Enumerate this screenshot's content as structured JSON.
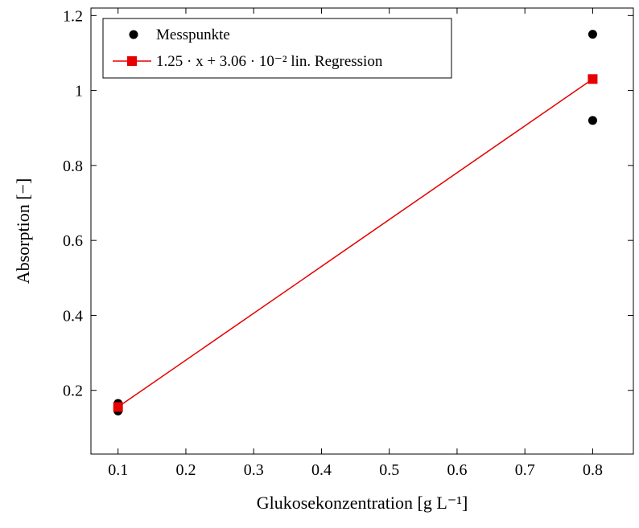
{
  "chart_data": {
    "type": "scatter",
    "title": "",
    "xlabel": "Glukosekonzentration [g L⁻¹]",
    "ylabel": "Absorption [−]",
    "xlim": [
      0.06,
      0.86
    ],
    "ylim": [
      0.03,
      1.22
    ],
    "grid": false,
    "legend_position": "top-left",
    "axis_color": "#000000",
    "background_color": "#ffffff",
    "xticks": [
      {
        "v": 0.1,
        "label": "0.1"
      },
      {
        "v": 0.2,
        "label": "0.2"
      },
      {
        "v": 0.3,
        "label": "0.3"
      },
      {
        "v": 0.4,
        "label": "0.4"
      },
      {
        "v": 0.5,
        "label": "0.5"
      },
      {
        "v": 0.6,
        "label": "0.6"
      },
      {
        "v": 0.7,
        "label": "0.7"
      },
      {
        "v": 0.8,
        "label": "0.8"
      }
    ],
    "yticks": [
      {
        "v": 0.2,
        "label": "0.2"
      },
      {
        "v": 0.4,
        "label": "0.4"
      },
      {
        "v": 0.6,
        "label": "0.6"
      },
      {
        "v": 0.8,
        "label": "0.8"
      },
      {
        "v": 1.0,
        "label": "1"
      },
      {
        "v": 1.2,
        "label": "1.2"
      }
    ],
    "series": [
      {
        "name": "Messpunkte",
        "type": "scatter",
        "marker": "circle",
        "color": "#000000",
        "points": [
          [
            0.1,
            0.145
          ],
          [
            0.1,
            0.165
          ],
          [
            0.8,
            0.92
          ],
          [
            0.8,
            1.15
          ]
        ]
      },
      {
        "name": "1.25 · x + 3.06 · 10⁻² lin. Regression",
        "type": "line",
        "marker": "square",
        "color": "#e60000",
        "equation": {
          "slope": 1.25,
          "intercept": 0.0306
        },
        "points": [
          [
            0.1,
            0.1556
          ],
          [
            0.8,
            1.0306
          ]
        ]
      }
    ]
  }
}
